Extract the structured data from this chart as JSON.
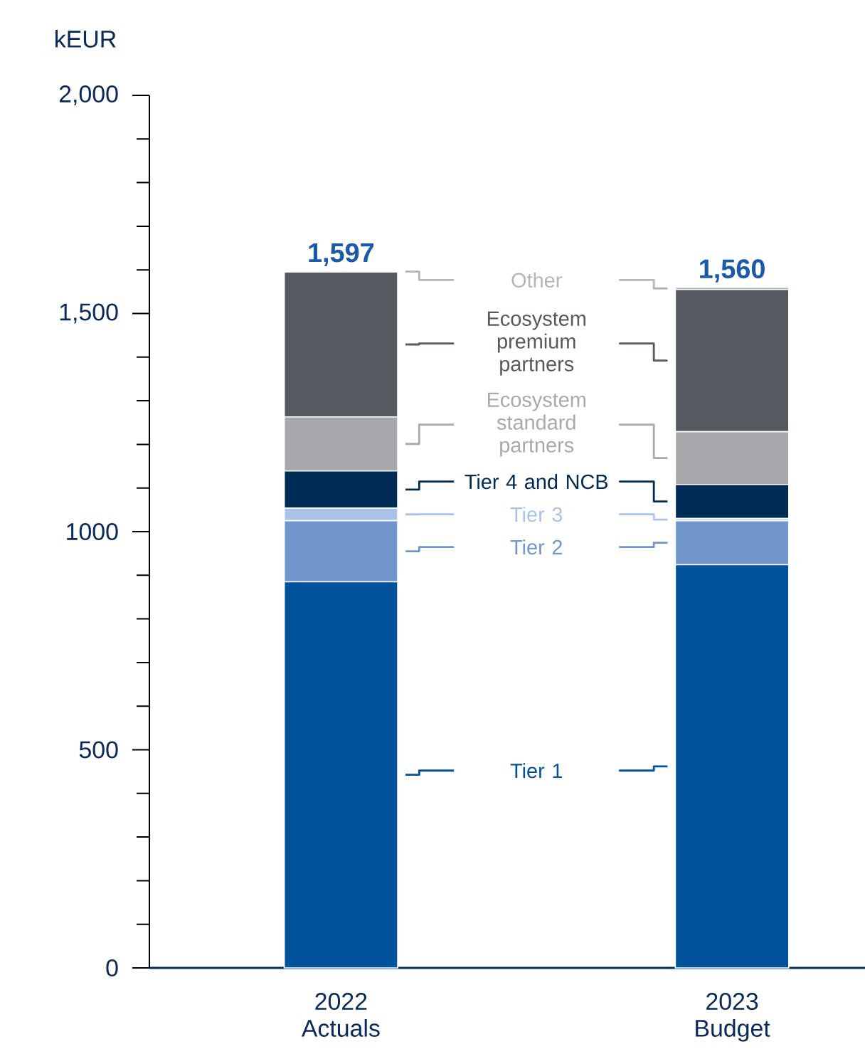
{
  "chart_data": {
    "type": "bar",
    "stacked": true,
    "ylabel": "kEUR",
    "categories": [
      "2022 Actuals",
      "2023 Budget"
    ],
    "series": [
      {
        "name": "Tier 1",
        "color": "#00529b",
        "values": [
          885,
          924
        ]
      },
      {
        "name": "Tier 2",
        "color": "#7196cc",
        "values": [
          140,
          101
        ]
      },
      {
        "name": "Tier 3",
        "color": "#a9c3e8",
        "values": [
          29,
          5
        ]
      },
      {
        "name": "Tier 4 and NCB",
        "color": "#002b55",
        "values": [
          85,
          78
        ]
      },
      {
        "name": "Ecosystem standard partners",
        "color": "#a7a9ac",
        "values": [
          124,
          121
        ]
      },
      {
        "name": "Ecosystem premium partners",
        "color": "#545a60",
        "values": [
          332,
          326
        ]
      },
      {
        "name": "Other",
        "color": "#b3b5b8",
        "values": [
          2,
          5
        ]
      }
    ],
    "totals": [
      "1,597",
      "1,560"
    ],
    "ylim": [
      0,
      2000
    ],
    "yticks": [
      0,
      500,
      {
        "value": 1000,
        "label": "1000"
      },
      {
        "value": 1500,
        "label": "1,500"
      },
      {
        "value": 2000,
        "label": "2,000"
      }
    ],
    "grid": false,
    "legend": "center"
  }
}
